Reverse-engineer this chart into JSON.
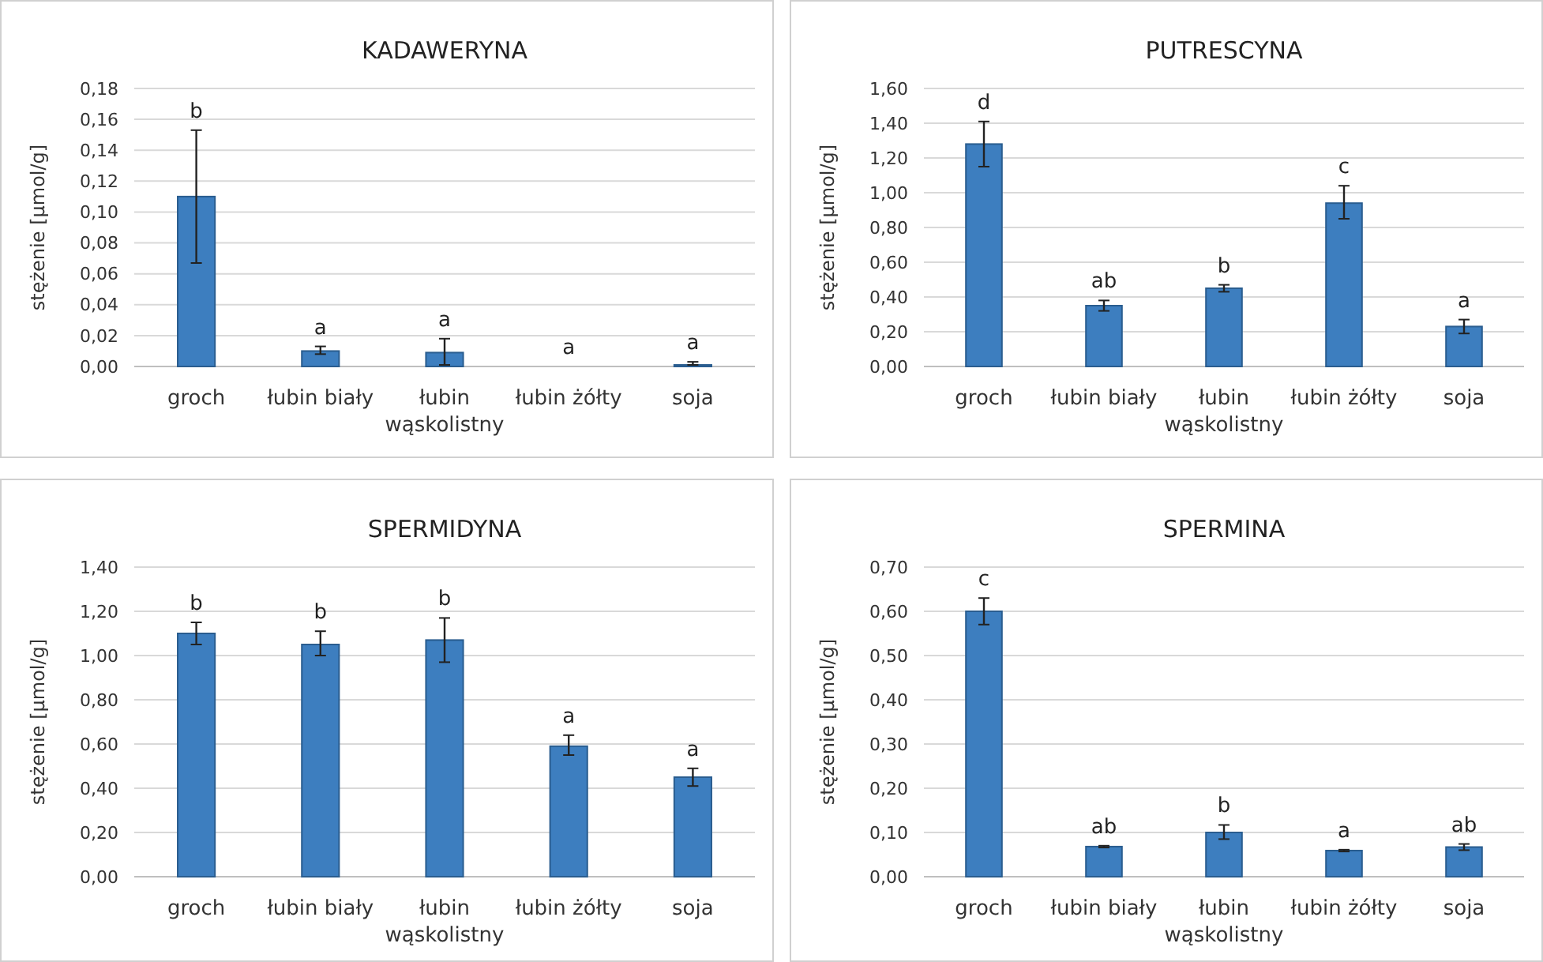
{
  "chart_data": [
    {
      "type": "bar",
      "title": "KADAWERYNA",
      "ylabel": "stężenie [µmol/g]",
      "categories": [
        "groch",
        "łubin biały",
        "łubin wąskolistny",
        "łubin żółty",
        "soja"
      ],
      "color": "#3d7ebf",
      "values": [
        0.11,
        0.01,
        0.009,
        0,
        0.001
      ],
      "errors": [
        [
          0.067,
          0.153
        ],
        [
          0.008,
          0.013
        ],
        [
          0.001,
          0.018
        ],
        null,
        [
          0.001,
          0.003
        ]
      ],
      "ylim": [
        0,
        0.18
      ],
      "yticks": [
        {
          "value": 0,
          "label": "0,00"
        },
        {
          "value": 0.02,
          "label": "0,02"
        },
        {
          "value": 0.04,
          "label": "0,04"
        },
        {
          "value": 0.06,
          "label": "0,06"
        },
        {
          "value": 0.08,
          "label": "0,08"
        },
        {
          "value": 0.1,
          "label": "0,10"
        },
        {
          "value": 0.12,
          "label": "0,12"
        },
        {
          "value": 0.14,
          "label": "0,14"
        },
        {
          "value": 0.16,
          "label": "0,16"
        },
        {
          "value": 0.18,
          "label": "0,18"
        }
      ],
      "grid": "y",
      "annotations": [
        {
          "text": "b",
          "x": "groch",
          "y": 0.153
        },
        {
          "text": "a",
          "x": "łubin biały",
          "y": 0.013
        },
        {
          "text": "a",
          "x": "łubin wąskolistny",
          "y": 0.018
        },
        {
          "text": "a",
          "x": "łubin żółty",
          "y": 0
        },
        {
          "text": "a",
          "x": "soja",
          "y": 0.003
        }
      ]
    },
    {
      "type": "bar",
      "title": "PUTRESCYNA",
      "ylabel": "stężenie [µmol/g]",
      "categories": [
        "groch",
        "łubin biały",
        "łubin wąskolistny",
        "łubin żółty",
        "soja"
      ],
      "color": "#3d7ebf",
      "values": [
        1.28,
        0.35,
        0.45,
        0.94,
        0.23
      ],
      "errors": [
        [
          1.15,
          1.41
        ],
        [
          0.32,
          0.38
        ],
        [
          0.43,
          0.47
        ],
        [
          0.85,
          1.04
        ],
        [
          0.19,
          0.27
        ]
      ],
      "ylim": [
        0,
        1.6
      ],
      "yticks": [
        {
          "value": 0,
          "label": "0,00"
        },
        {
          "value": 0.2,
          "label": "0,20"
        },
        {
          "value": 0.4,
          "label": "0,40"
        },
        {
          "value": 0.6,
          "label": "0,60"
        },
        {
          "value": 0.8,
          "label": "0,80"
        },
        {
          "value": 1.0,
          "label": "1,00"
        },
        {
          "value": 1.2,
          "label": "1,20"
        },
        {
          "value": 1.4,
          "label": "1,40"
        },
        {
          "value": 1.6,
          "label": "1,60"
        }
      ],
      "grid": "y",
      "annotations": [
        {
          "text": "d",
          "x": "groch",
          "y": 1.41
        },
        {
          "text": "ab",
          "x": "łubin biały",
          "y": 0.38
        },
        {
          "text": "b",
          "x": "łubin wąskolistny",
          "y": 0.47
        },
        {
          "text": "c",
          "x": "łubin żółty",
          "y": 1.04
        },
        {
          "text": "a",
          "x": "soja",
          "y": 0.27
        }
      ]
    },
    {
      "type": "bar",
      "title": "SPERMIDYNA",
      "ylabel": "stężenie [µmol/g]",
      "categories": [
        "groch",
        "łubin biały",
        "łubin wąskolistny",
        "łubin żółty",
        "soja"
      ],
      "color": "#3d7ebf",
      "values": [
        1.1,
        1.05,
        1.07,
        0.59,
        0.45
      ],
      "errors": [
        [
          1.05,
          1.15
        ],
        [
          1.0,
          1.11
        ],
        [
          0.97,
          1.17
        ],
        [
          0.55,
          0.64
        ],
        [
          0.41,
          0.49
        ]
      ],
      "ylim": [
        0,
        1.4
      ],
      "yticks": [
        {
          "value": 0,
          "label": "0,00"
        },
        {
          "value": 0.2,
          "label": "0,20"
        },
        {
          "value": 0.4,
          "label": "0,40"
        },
        {
          "value": 0.6,
          "label": "0,60"
        },
        {
          "value": 0.8,
          "label": "0,80"
        },
        {
          "value": 1.0,
          "label": "1,00"
        },
        {
          "value": 1.2,
          "label": "1,20"
        },
        {
          "value": 1.4,
          "label": "1,40"
        }
      ],
      "grid": "y",
      "annotations": [
        {
          "text": "b",
          "x": "groch",
          "y": 1.15
        },
        {
          "text": "b",
          "x": "łubin biały",
          "y": 1.11
        },
        {
          "text": "b",
          "x": "łubin wąskolistny",
          "y": 1.17
        },
        {
          "text": "a",
          "x": "łubin żółty",
          "y": 0.64
        },
        {
          "text": "a",
          "x": "soja",
          "y": 0.49
        }
      ]
    },
    {
      "type": "bar",
      "title": "SPERMINA",
      "ylabel": "stężenie [µmol/g]",
      "categories": [
        "groch",
        "łubin biały",
        "łubin wąskolistny",
        "łubin żółty",
        "soja"
      ],
      "color": "#3d7ebf",
      "values": [
        0.6,
        0.068,
        0.1,
        0.059,
        0.067
      ],
      "errors": [
        [
          0.57,
          0.63
        ],
        [
          0.066,
          0.07
        ],
        [
          0.085,
          0.117
        ],
        [
          0.057,
          0.061
        ],
        [
          0.06,
          0.074
        ]
      ],
      "ylim": [
        0,
        0.7
      ],
      "yticks": [
        {
          "value": 0,
          "label": "0,00"
        },
        {
          "value": 0.1,
          "label": "0,10"
        },
        {
          "value": 0.2,
          "label": "0,20"
        },
        {
          "value": 0.3,
          "label": "0,30"
        },
        {
          "value": 0.4,
          "label": "0,40"
        },
        {
          "value": 0.5,
          "label": "0,50"
        },
        {
          "value": 0.6,
          "label": "0,60"
        },
        {
          "value": 0.7,
          "label": "0,70"
        }
      ],
      "grid": "y",
      "annotations": [
        {
          "text": "c",
          "x": "groch",
          "y": 0.63
        },
        {
          "text": "ab",
          "x": "łubin biały",
          "y": 0.07
        },
        {
          "text": "b",
          "x": "łubin wąskolistny",
          "y": 0.117
        },
        {
          "text": "a",
          "x": "łubin żółty",
          "y": 0.061
        },
        {
          "text": "ab",
          "x": "soja",
          "y": 0.074
        }
      ]
    }
  ]
}
